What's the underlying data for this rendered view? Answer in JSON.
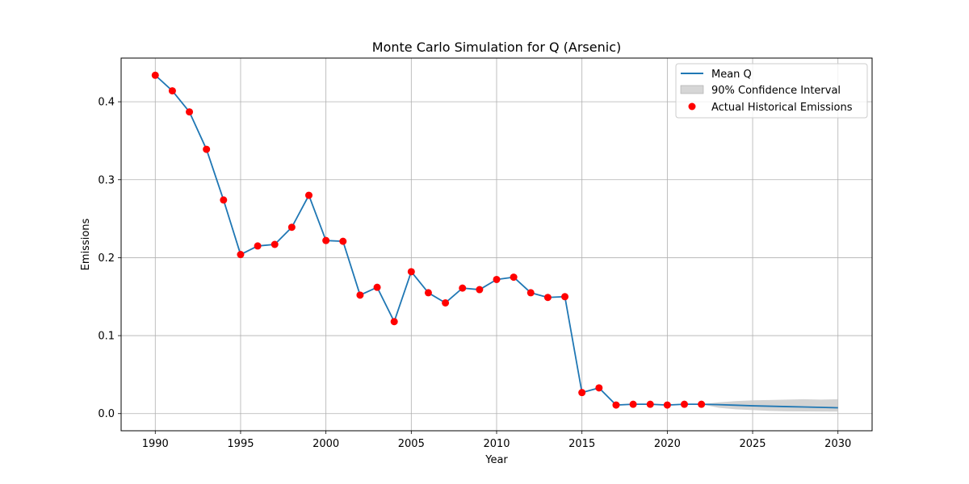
{
  "chart_data": {
    "type": "line",
    "title": "Monte Carlo Simulation for Q (Arsenic)",
    "xlabel": "Year",
    "ylabel": "Emissions",
    "xlim": [
      1988,
      2032
    ],
    "ylim": [
      -0.022,
      0.456
    ],
    "xticks": [
      1990,
      1995,
      2000,
      2005,
      2010,
      2015,
      2020,
      2025,
      2030
    ],
    "yticks": [
      0.0,
      0.1,
      0.2,
      0.3,
      0.4
    ],
    "grid": true,
    "legend_position": "top-right",
    "colors": {
      "mean_line": "#1f77b4",
      "confidence_fill": "#c8c8c8",
      "historical_points": "#ff0000",
      "grid": "#b0b0b0"
    },
    "series": [
      {
        "name": "Mean Q",
        "kind": "line",
        "x": [
          1990,
          1991,
          1992,
          1993,
          1994,
          1995,
          1996,
          1997,
          1998,
          1999,
          2000,
          2001,
          2002,
          2003,
          2004,
          2005,
          2006,
          2007,
          2008,
          2009,
          2010,
          2011,
          2012,
          2013,
          2014,
          2015,
          2016,
          2017,
          2018,
          2019,
          2020,
          2021,
          2022,
          2023,
          2024,
          2025,
          2026,
          2027,
          2028,
          2029,
          2030
        ],
        "y": [
          0.434,
          0.414,
          0.387,
          0.339,
          0.274,
          0.204,
          0.215,
          0.217,
          0.239,
          0.28,
          0.222,
          0.221,
          0.152,
          0.162,
          0.118,
          0.182,
          0.155,
          0.142,
          0.161,
          0.159,
          0.172,
          0.175,
          0.155,
          0.149,
          0.15,
          0.027,
          0.033,
          0.011,
          0.012,
          0.012,
          0.011,
          0.012,
          0.012,
          0.0115,
          0.0108,
          0.01,
          0.0095,
          0.009,
          0.0085,
          0.008,
          0.0075
        ]
      },
      {
        "name": "90% Confidence Interval",
        "kind": "band",
        "x": [
          2022,
          2023,
          2024,
          2025,
          2026,
          2027,
          2028,
          2029,
          2030
        ],
        "lower": [
          0.012,
          0.0075,
          0.0055,
          0.0045,
          0.0035,
          0.003,
          0.0028,
          0.0027,
          0.0026
        ],
        "upper": [
          0.012,
          0.0145,
          0.016,
          0.017,
          0.0175,
          0.018,
          0.0185,
          0.018,
          0.0185
        ]
      },
      {
        "name": "Actual Historical Emissions",
        "kind": "scatter",
        "x": [
          1990,
          1991,
          1992,
          1993,
          1994,
          1995,
          1996,
          1997,
          1998,
          1999,
          2000,
          2001,
          2002,
          2003,
          2004,
          2005,
          2006,
          2007,
          2008,
          2009,
          2010,
          2011,
          2012,
          2013,
          2014,
          2015,
          2016,
          2017,
          2018,
          2019,
          2020,
          2021,
          2022
        ],
        "y": [
          0.434,
          0.414,
          0.387,
          0.339,
          0.274,
          0.204,
          0.215,
          0.217,
          0.239,
          0.28,
          0.222,
          0.221,
          0.152,
          0.162,
          0.118,
          0.182,
          0.155,
          0.142,
          0.161,
          0.159,
          0.172,
          0.175,
          0.155,
          0.149,
          0.15,
          0.027,
          0.033,
          0.011,
          0.012,
          0.012,
          0.011,
          0.012,
          0.012
        ]
      }
    ]
  }
}
